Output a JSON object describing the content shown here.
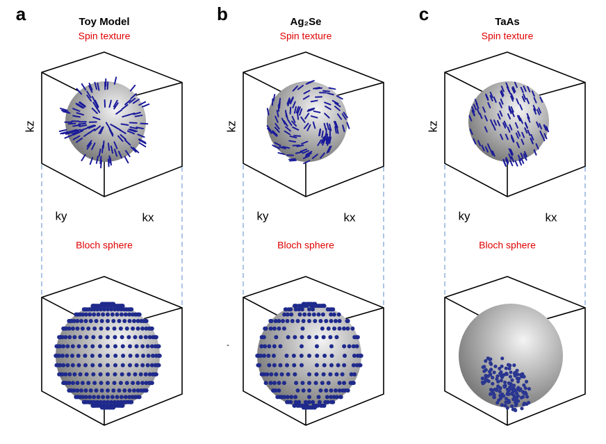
{
  "panels": [
    {
      "label": "a",
      "title": "Toy Model",
      "subtitle": "Spin texture",
      "axis_z": "kz",
      "axis_y": "ky",
      "axis_x": "kx",
      "bottom_label": "Bloch sphere"
    },
    {
      "label": "b",
      "title": "Ag₂Se",
      "subtitle": "Spin texture",
      "axis_z": "kz",
      "axis_y": "ky",
      "axis_x": "kx",
      "bottom_label": "Bloch sphere"
    },
    {
      "label": "c",
      "title": "TaAs",
      "subtitle": "Spin texture",
      "axis_z": "kz",
      "axis_y": "ky",
      "axis_x": "kx",
      "bottom_label": "Bloch sphere"
    }
  ],
  "stray_mark": "-"
}
